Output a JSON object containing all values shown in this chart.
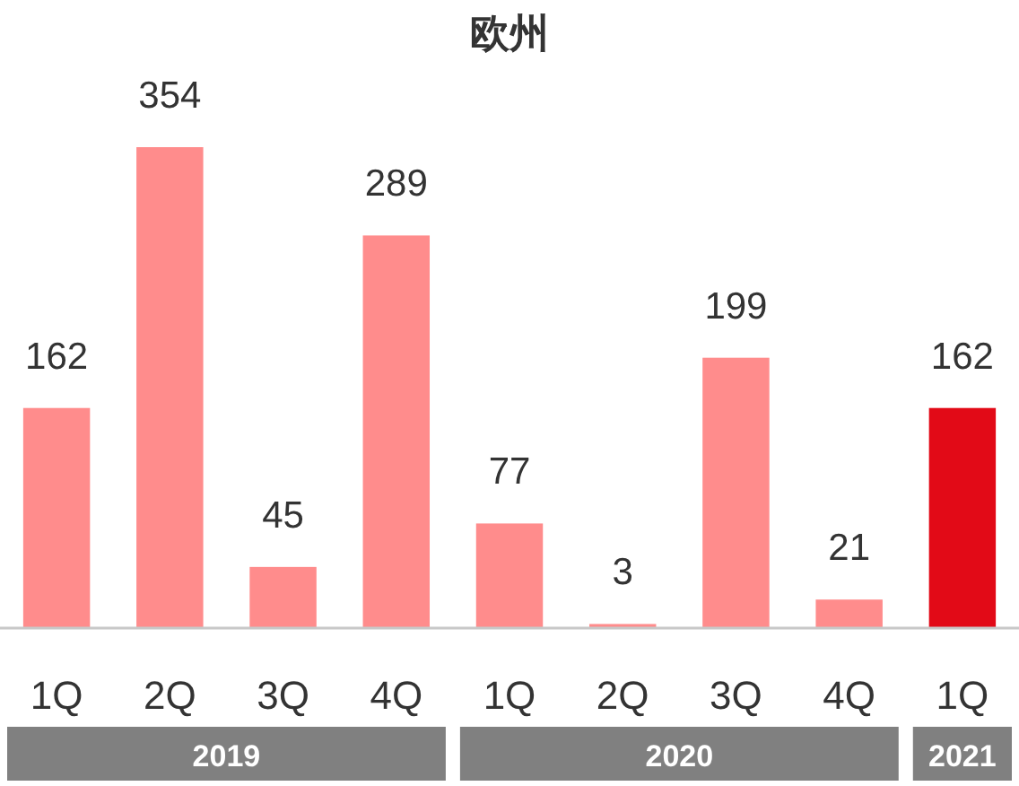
{
  "chart_data": {
    "type": "bar",
    "title": "欧州",
    "categories": [
      "1Q",
      "2Q",
      "3Q",
      "4Q",
      "1Q",
      "2Q",
      "3Q",
      "4Q",
      "1Q"
    ],
    "values": [
      162,
      354,
      45,
      289,
      77,
      3,
      199,
      21,
      162
    ],
    "colors": [
      "#ff8c8c",
      "#ff8c8c",
      "#ff8c8c",
      "#ff8c8c",
      "#ff8c8c",
      "#ff8c8c",
      "#ff8c8c",
      "#ff8c8c",
      "#e20a17"
    ],
    "data_labels": true,
    "annotations": [
      "2019",
      "2020",
      "2021"
    ]
  }
}
